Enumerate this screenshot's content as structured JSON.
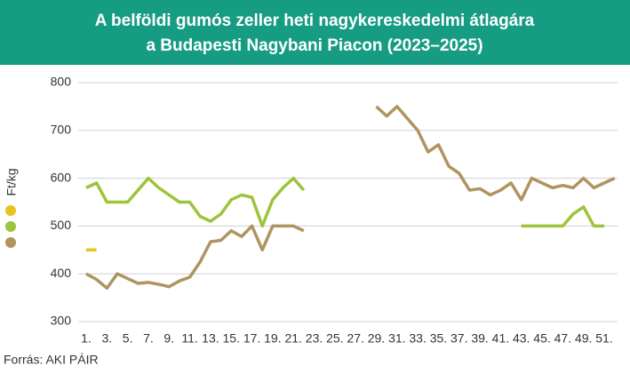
{
  "chart_data": {
    "type": "line",
    "title": [
      "A belföldi gumós zeller heti nagykereskedelmi átlagára",
      "a Budapesti Nagybani Piacon (2023–2025)"
    ],
    "y_label": "Ft/kg",
    "source": "Forrás: AKI PÁIR",
    "categories": [
      "1.",
      null,
      "3.",
      null,
      "5.",
      null,
      "7.",
      null,
      "9.",
      null,
      "11.",
      null,
      "13.",
      null,
      "15.",
      null,
      "17.",
      null,
      "19.",
      null,
      "21.",
      null,
      "23.",
      null,
      "25.",
      null,
      "27.",
      null,
      "29.",
      null,
      "31.",
      null,
      "33.",
      null,
      "35.",
      null,
      "37.",
      null,
      "39.",
      null,
      "41.",
      null,
      "43.",
      null,
      "45.",
      null,
      "47.",
      null,
      "49.",
      null,
      "51.",
      null
    ],
    "series": [
      {
        "color": "#e8c31e",
        "values": [
          450,
          450,
          null,
          null,
          null,
          null,
          null,
          null,
          null,
          null,
          null,
          null,
          null,
          null,
          null,
          null,
          null,
          null,
          null,
          null,
          null,
          null,
          null,
          null,
          null,
          null,
          null,
          null,
          null,
          null,
          null,
          null,
          null,
          null,
          null,
          null,
          null,
          null,
          null,
          null,
          null,
          null,
          null,
          null,
          null,
          null,
          null,
          null,
          null,
          null,
          null,
          null
        ]
      },
      {
        "color": "#9dc43a",
        "values": [
          580,
          590,
          550,
          550,
          550,
          575,
          600,
          580,
          565,
          550,
          550,
          520,
          510,
          525,
          555,
          565,
          560,
          500,
          555,
          580,
          600,
          575,
          null,
          null,
          null,
          null,
          null,
          null,
          null,
          null,
          null,
          null,
          null,
          null,
          null,
          null,
          null,
          null,
          null,
          null,
          null,
          null,
          500,
          500,
          500,
          500,
          500,
          525,
          540,
          500,
          500,
          null
        ]
      },
      {
        "color": "#b09460",
        "values": [
          400,
          388,
          370,
          400,
          390,
          380,
          382,
          378,
          373,
          385,
          393,
          425,
          467,
          470,
          490,
          478,
          500,
          450,
          500,
          500,
          500,
          490,
          null,
          null,
          null,
          null,
          null,
          null,
          750,
          730,
          750,
          725,
          700,
          655,
          670,
          625,
          610,
          575,
          578,
          565,
          575,
          590,
          555,
          600,
          590,
          580,
          585,
          580,
          600,
          580,
          590,
          600
        ]
      }
    ],
    "ylim": [
      300,
      800
    ],
    "yticks": [
      300,
      400,
      500,
      600,
      700,
      800
    ],
    "grid": true
  }
}
